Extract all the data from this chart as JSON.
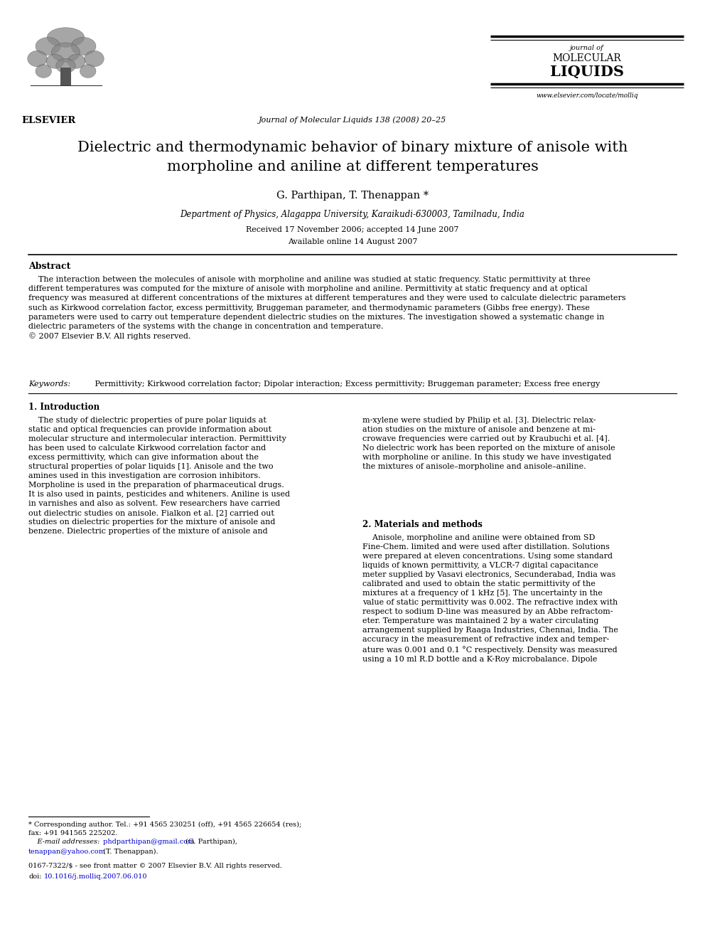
{
  "bg_color": "#ffffff",
  "page_width": 9.92,
  "page_height": 13.23,
  "dpi": 100,
  "header": {
    "journal_text_center": "Journal of Molecular Liquids 138 (2008) 20–25",
    "journal_name_line1": "journal of",
    "journal_name_line2": "MOLECULAR",
    "journal_name_line3": "LIQUIDS",
    "website": "www.elsevier.com/locate/molliq",
    "elsevier_label": "ELSEVIER"
  },
  "title": "Dielectric and thermodynamic behavior of binary mixture of anisole with\nmorpholine and aniline at different temperatures",
  "authors": "G. Parthipan, T. Thenappan *",
  "affiliation": "Department of Physics, Alagappa University, Karaikudi-630003, Tamilnadu, India",
  "received": "Received 17 November 2006; accepted 14 June 2007",
  "available": "Available online 14 August 2007",
  "abstract_heading": "Abstract",
  "abstract_text": "    The interaction between the molecules of anisole with morpholine and aniline was studied at static frequency. Static permittivity at three\ndifferent temperatures was computed for the mixture of anisole with morpholine and aniline. Permittivity at static frequency and at optical\nfrequency was measured at different concentrations of the mixtures at different temperatures and they were used to calculate dielectric parameters\nsuch as Kirkwood correlation factor, excess permittivity, Bruggeman parameter, and thermodynamic parameters (Gibbs free energy). These\nparameters were used to carry out temperature dependent dielectric studies on the mixtures. The investigation showed a systematic change in\ndielectric parameters of the systems with the change in concentration and temperature.\n© 2007 Elsevier B.V. All rights reserved.",
  "keywords_label": "Keywords:",
  "keywords_text": " Permittivity; Kirkwood correlation factor; Dipolar interaction; Excess permittivity; Bruggeman parameter; Excess free energy",
  "section1_heading": "1. Introduction",
  "section1_col1": "    The study of dielectric properties of pure polar liquids at\nstatic and optical frequencies can provide information about\nmolecular structure and intermolecular interaction. Permittivity\nhas been used to calculate Kirkwood correlation factor and\nexcess permittivity, which can give information about the\nstructural properties of polar liquids [1]. Anisole and the two\namines used in this investigation are corrosion inhibitors.\nMorpholine is used in the preparation of pharmaceutical drugs.\nIt is also used in paints, pesticides and whiteners. Aniline is used\nin varnishes and also as solvent. Few researchers have carried\nout dielectric studies on anisole. Fialkon et al. [2] carried out\nstudies on dielectric properties for the mixture of anisole and\nbenzene. Dielectric properties of the mixture of anisole and",
  "section1_col2": "m-xylene were studied by Philip et al. [3]. Dielectric relax-\nation studies on the mixture of anisole and benzene at mi-\ncrowave frequencies were carried out by Kraubuchi et al. [4].\nNo dielectric work has been reported on the mixture of anisole\nwith morpholine or aniline. In this study we have investigated\nthe mixtures of anisole–morpholine and anisole–aniline.",
  "section2_heading": "2. Materials and methods",
  "section2_col2": "    Anisole, morpholine and aniline were obtained from SD\nFine-Chem. limited and were used after distillation. Solutions\nwere prepared at eleven concentrations. Using some standard\nliquids of known permittivity, a VLCR-7 digital capacitance\nmeter supplied by Vasavi electronics, Secunderabad, India was\ncalibrated and used to obtain the static permittivity of the\nmixtures at a frequency of 1 kHz [5]. The uncertainty in the\nvalue of static permittivity was 0.002. The refractive index with\nrespect to sodium D-line was measured by an Abbe refractom-\neter. Temperature was maintained 2 by a water circulating\narrangement supplied by Raaga Industries, Chennai, India. The\naccuracy in the measurement of refractive index and temper-\nature was 0.001 and 0.1 °C respectively. Density was measured\nusing a 10 ml R.D bottle and a K-Roy microbalance. Dipole",
  "footnote_star": "* Corresponding author. Tel.: +91 4565 230251 (off), +91 4565 226654 (res);\nfax: +91 941565 225202.",
  "footnote_email_label": "    E-mail addresses:",
  "footnote_email1": " phdparthipan@gmail.com",
  "footnote_email1_name": " (G. Parthipan),",
  "footnote_email2": "tenappan@yahoo.com",
  "footnote_email2_name": " (T. Thenappan).",
  "footnote_issn": "0167-7322/$ - see front matter © 2007 Elsevier B.V. All rights reserved.",
  "footnote_doi_label": "doi:",
  "footnote_doi": "10.1016/j.molliq.2007.06.010"
}
